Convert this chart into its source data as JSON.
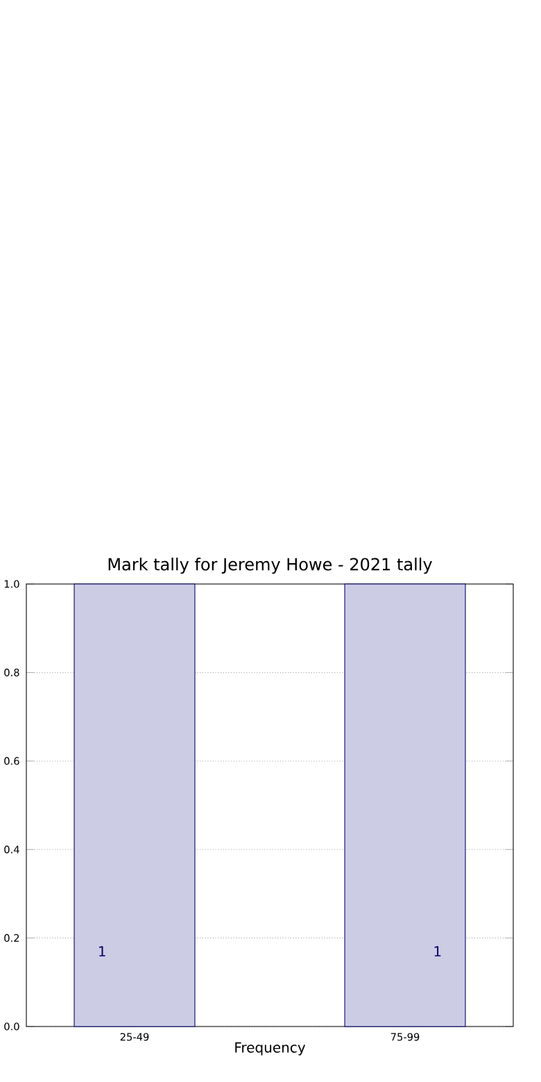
{
  "chart_data": {
    "type": "bar",
    "title": "Mark tally for Jeremy Howe - 2021 tally",
    "xlabel": "Frequency",
    "categories": [
      "25-49",
      "75-99"
    ],
    "values": [
      1,
      1
    ],
    "color": "#cccce5",
    "value_labels": [
      "1",
      "1"
    ],
    "ylim": [
      0,
      1
    ],
    "yticks": [
      {
        "value": 0,
        "label": "0.0"
      },
      {
        "value": 0.2,
        "label": "0.2"
      },
      {
        "value": 0.4,
        "label": "0.4"
      },
      {
        "value": 0.6,
        "label": "0.6"
      },
      {
        "value": 0.8,
        "label": "0.8"
      },
      {
        "value": 1.0,
        "label": "1.0"
      }
    ],
    "grid": true
  }
}
